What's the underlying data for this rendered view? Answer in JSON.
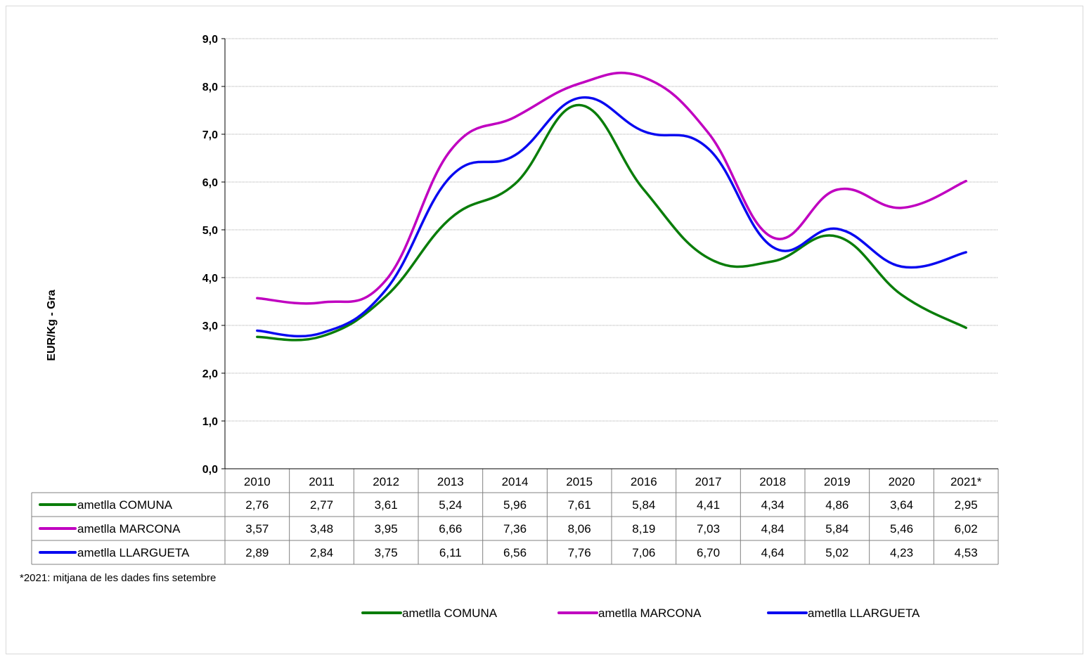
{
  "chart_data": {
    "type": "line",
    "title": "",
    "xlabel": "",
    "ylabel": "EUR/Kg - Gra",
    "ylim": [
      0,
      9
    ],
    "yticks": [
      "0,0",
      "1,0",
      "2,0",
      "3,0",
      "4,0",
      "5,0",
      "6,0",
      "7,0",
      "8,0",
      "9,0"
    ],
    "grid": true,
    "smooth": true,
    "legend_position": "bottom",
    "categories": [
      "2010",
      "2011",
      "2012",
      "2013",
      "2014",
      "2015",
      "2016",
      "2017",
      "2018",
      "2019",
      "2020",
      "2021*"
    ],
    "series": [
      {
        "name": "ametlla COMUNA",
        "color": "#0a7d0a",
        "values": [
          2.76,
          2.77,
          3.61,
          5.24,
          5.96,
          7.61,
          5.84,
          4.41,
          4.34,
          4.86,
          3.64,
          2.95
        ],
        "labels": [
          "2,76",
          "2,77",
          "3,61",
          "5,24",
          "5,96",
          "7,61",
          "5,84",
          "4,41",
          "4,34",
          "4,86",
          "3,64",
          "2,95"
        ]
      },
      {
        "name": "ametlla MARCONA",
        "color": "#c000c0",
        "values": [
          3.57,
          3.48,
          3.95,
          6.66,
          7.36,
          8.06,
          8.19,
          7.03,
          4.84,
          5.84,
          5.46,
          6.02
        ],
        "labels": [
          "3,57",
          "3,48",
          "3,95",
          "6,66",
          "7,36",
          "8,06",
          "8,19",
          "7,03",
          "4,84",
          "5,84",
          "5,46",
          "6,02"
        ]
      },
      {
        "name": "ametlla LLARGUETA",
        "color": "#0a0af0",
        "values": [
          2.89,
          2.84,
          3.75,
          6.11,
          6.56,
          7.76,
          7.06,
          6.7,
          4.64,
          5.02,
          4.23,
          4.53
        ],
        "labels": [
          "2,89",
          "2,84",
          "3,75",
          "6,11",
          "6,56",
          "7,76",
          "7,06",
          "6,70",
          "4,64",
          "5,02",
          "4,23",
          "4,53"
        ]
      }
    ],
    "footnote": "*2021: mitjana de les dades fins setembre"
  }
}
